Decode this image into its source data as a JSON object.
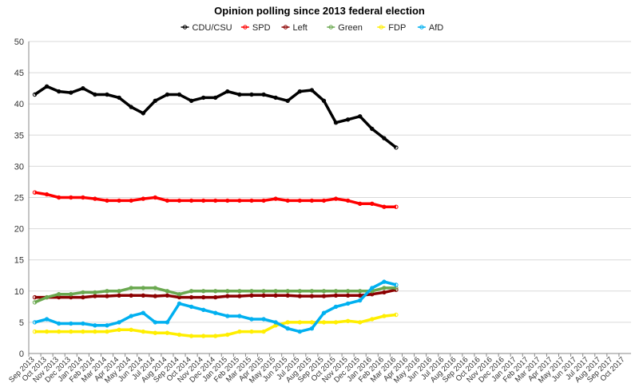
{
  "chart_data": {
    "type": "scatter",
    "title": "Opinion polling since 2013 federal election",
    "xlabel": "",
    "ylabel": "",
    "ylim": [
      0,
      50
    ],
    "yticks": [
      0,
      5,
      10,
      15,
      20,
      25,
      30,
      35,
      40,
      45,
      50
    ],
    "grid": "horizontal",
    "legend_position": "top",
    "x_tick_labels": [
      "Sep 2013",
      "Oct 2013",
      "Nov 2013",
      "Dec 2013",
      "Jan 2014",
      "Feb 2014",
      "Mar 2014",
      "Apr 2014",
      "May 2014",
      "Jun 2014",
      "Jul 2014",
      "Aug 2014",
      "Sep 2014",
      "Oct 2014",
      "Nov 2014",
      "Dec 2014",
      "Jan 2015",
      "Feb 2015",
      "Mar 2015",
      "Apr 2015",
      "May 2015",
      "Jun 2015",
      "Jul 2015",
      "Aug 2015",
      "Sep 2015",
      "Oct 2015",
      "Nov 2015",
      "Dec 2015",
      "Jan 2016",
      "Feb 2016",
      "Mar 2016",
      "Apr 2016",
      "May 2016",
      "Jun 2016",
      "Jul 2016",
      "Aug 2016",
      "Sep 2016",
      "Oct 2016",
      "Nov 2016",
      "Dec 2016",
      "Jan 2017",
      "Feb 2017",
      "Mar 2017",
      "Apr 2017",
      "May 2017",
      "Jun 2017",
      "Jul 2017",
      "Aug 2017",
      "Sep 2017",
      "Oct 2017"
    ],
    "x_unit": "month",
    "series": [
      {
        "name": "CDU/CSU",
        "color": "#000000",
        "values": [
          41.5,
          42.8,
          42,
          41.8,
          42.5,
          41.5,
          41.5,
          41,
          39.5,
          38.5,
          40.5,
          41.5,
          41.5,
          40.5,
          41,
          41,
          42,
          41.5,
          41.5,
          41.5,
          41,
          40.5,
          42,
          42.2,
          40.5,
          37,
          37.5,
          38,
          36,
          34.5,
          33
        ]
      },
      {
        "name": "SPD",
        "color": "#ff0000",
        "values": [
          25.8,
          25.5,
          25,
          25,
          25,
          24.8,
          24.5,
          24.5,
          24.5,
          24.8,
          25,
          24.5,
          24.5,
          24.5,
          24.5,
          24.5,
          24.5,
          24.5,
          24.5,
          24.5,
          24.8,
          24.5,
          24.5,
          24.5,
          24.5,
          24.8,
          24.5,
          24,
          24,
          23.5,
          23.5
        ]
      },
      {
        "name": "Left",
        "color": "#8b0000",
        "values": [
          9,
          9,
          9,
          9,
          9,
          9.2,
          9.2,
          9.3,
          9.3,
          9.3,
          9.2,
          9.3,
          9,
          9,
          9,
          9,
          9.2,
          9.2,
          9.3,
          9.3,
          9.3,
          9.3,
          9.2,
          9.2,
          9.2,
          9.3,
          9.3,
          9.3,
          9.5,
          9.8,
          10.2
        ]
      },
      {
        "name": "Green",
        "color": "#6aa84f",
        "values": [
          8.2,
          9,
          9.5,
          9.5,
          9.8,
          9.8,
          10,
          10,
          10.5,
          10.5,
          10.5,
          10,
          9.5,
          10,
          10,
          10,
          10,
          10,
          10,
          10,
          10,
          10,
          10,
          10,
          10,
          10,
          10,
          10,
          10,
          10.5,
          10.5
        ]
      },
      {
        "name": "FDP",
        "color": "#ffee00",
        "values": [
          3.5,
          3.5,
          3.5,
          3.5,
          3.5,
          3.5,
          3.5,
          3.8,
          3.8,
          3.5,
          3.3,
          3.3,
          3,
          2.8,
          2.8,
          2.8,
          3,
          3.5,
          3.5,
          3.5,
          4.5,
          5,
          5,
          5,
          5,
          5,
          5.2,
          5,
          5.5,
          6,
          6.2
        ]
      },
      {
        "name": "AfD",
        "color": "#00b0f0",
        "values": [
          5,
          5.5,
          4.8,
          4.8,
          4.8,
          4.5,
          4.5,
          5,
          6,
          6.5,
          5,
          5,
          8,
          7.5,
          7,
          6.5,
          6,
          6,
          5.5,
          5.5,
          5,
          4,
          3.5,
          4,
          6.5,
          7.5,
          8,
          8.5,
          10.5,
          11.5,
          11
        ]
      }
    ]
  }
}
